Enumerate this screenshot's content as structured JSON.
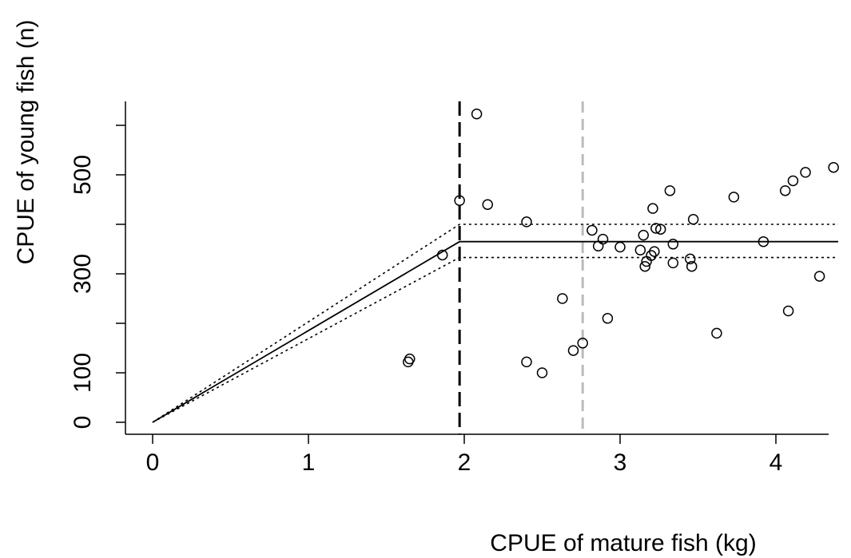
{
  "chart_data": {
    "type": "scatter",
    "title": "",
    "xlabel": "CPUE of mature fish (kg)",
    "ylabel": "CPUE of young fish (n)",
    "xlim": [
      0,
      4.4
    ],
    "ylim": [
      0,
      600
    ],
    "x_ticks": [
      0,
      1,
      2,
      3,
      4
    ],
    "y_ticks": [
      0,
      100,
      300,
      500
    ],
    "grid": false,
    "legend": "none",
    "points": [
      {
        "x": 1.64,
        "y": 122
      },
      {
        "x": 1.65,
        "y": 128
      },
      {
        "x": 1.86,
        "y": 338
      },
      {
        "x": 1.97,
        "y": 448
      },
      {
        "x": 2.08,
        "y": 623
      },
      {
        "x": 2.15,
        "y": 440
      },
      {
        "x": 2.4,
        "y": 405
      },
      {
        "x": 2.4,
        "y": 122
      },
      {
        "x": 2.5,
        "y": 100
      },
      {
        "x": 2.63,
        "y": 250
      },
      {
        "x": 2.7,
        "y": 145
      },
      {
        "x": 2.76,
        "y": 160
      },
      {
        "x": 2.82,
        "y": 388
      },
      {
        "x": 2.86,
        "y": 356
      },
      {
        "x": 2.89,
        "y": 370
      },
      {
        "x": 2.92,
        "y": 210
      },
      {
        "x": 3.0,
        "y": 354
      },
      {
        "x": 3.13,
        "y": 348
      },
      {
        "x": 3.15,
        "y": 378
      },
      {
        "x": 3.16,
        "y": 315
      },
      {
        "x": 3.17,
        "y": 325
      },
      {
        "x": 3.2,
        "y": 337
      },
      {
        "x": 3.21,
        "y": 432
      },
      {
        "x": 3.22,
        "y": 345
      },
      {
        "x": 3.23,
        "y": 392
      },
      {
        "x": 3.26,
        "y": 390
      },
      {
        "x": 3.32,
        "y": 468
      },
      {
        "x": 3.34,
        "y": 360
      },
      {
        "x": 3.34,
        "y": 322
      },
      {
        "x": 3.45,
        "y": 330
      },
      {
        "x": 3.46,
        "y": 315
      },
      {
        "x": 3.47,
        "y": 410
      },
      {
        "x": 3.62,
        "y": 180
      },
      {
        "x": 3.73,
        "y": 455
      },
      {
        "x": 3.92,
        "y": 365
      },
      {
        "x": 4.06,
        "y": 468
      },
      {
        "x": 4.08,
        "y": 225
      },
      {
        "x": 4.11,
        "y": 488
      },
      {
        "x": 4.19,
        "y": 505
      },
      {
        "x": 4.28,
        "y": 295
      },
      {
        "x": 4.37,
        "y": 515
      }
    ],
    "fit_line": {
      "x": [
        0,
        1.97,
        4.4
      ],
      "y": [
        0,
        365,
        365
      ]
    },
    "ci_upper": {
      "x": [
        0,
        1.97,
        4.4
      ],
      "y": [
        0,
        400,
        400
      ]
    },
    "ci_lower": {
      "x": [
        0,
        1.97,
        4.4
      ],
      "y": [
        0,
        333,
        333
      ]
    },
    "breakpoint_x": 1.97,
    "breakpoint_color": "#000000",
    "reference_x": 2.76,
    "reference_color": "#bbbbbb"
  }
}
